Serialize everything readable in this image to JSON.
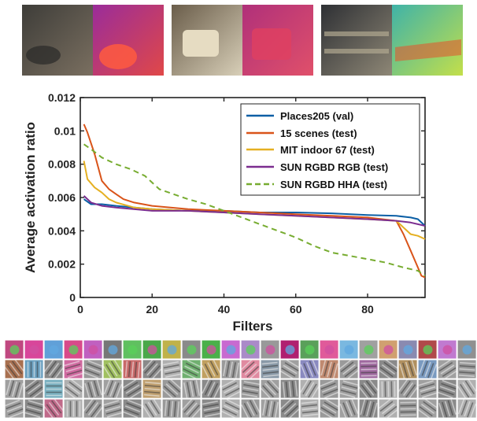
{
  "chart_data": {
    "type": "line",
    "xlabel": "Filters",
    "ylabel": "Average activation ratio",
    "xlim": [
      0,
      96
    ],
    "ylim": [
      0,
      0.012
    ],
    "xticks": [
      0,
      20,
      40,
      60,
      80
    ],
    "xtick_labels": [
      "0",
      "20",
      "40",
      "60",
      "80"
    ],
    "yticks": [
      0,
      0.002,
      0.004,
      0.006,
      0.008,
      0.01,
      0.012
    ],
    "ytick_labels": [
      "0",
      "0.002",
      "0.004",
      "0.006",
      "0.008",
      "0.01",
      "0.012"
    ],
    "grid": false,
    "legend_position": "top-right",
    "series": [
      {
        "name": "Places205 (val)",
        "color": "#0b5fa5",
        "dash": "solid",
        "x": [
          1,
          3,
          6,
          10,
          20,
          30,
          40,
          50,
          60,
          70,
          80,
          88,
          92,
          94,
          96
        ],
        "y": [
          0.0059,
          0.0056,
          0.0056,
          0.0055,
          0.0053,
          0.0052,
          0.0052,
          0.0051,
          0.0051,
          0.00505,
          0.00495,
          0.0049,
          0.0048,
          0.0047,
          0.0043
        ]
      },
      {
        "name": "15 scenes (test)",
        "color": "#d9541a",
        "dash": "solid",
        "x": [
          1,
          2,
          4,
          6,
          8,
          10,
          12,
          15,
          20,
          30,
          40,
          50,
          60,
          70,
          80,
          88,
          90,
          92,
          94,
          95,
          96
        ],
        "y": [
          0.0104,
          0.0099,
          0.0086,
          0.007,
          0.0065,
          0.0062,
          0.0059,
          0.0057,
          0.0055,
          0.0053,
          0.0052,
          0.0051,
          0.005,
          0.0049,
          0.0048,
          0.0046,
          0.0038,
          0.0028,
          0.0018,
          0.0013,
          0.0012
        ]
      },
      {
        "name": "MIT indoor 67 (test)",
        "color": "#e5b022",
        "dash": "solid",
        "x": [
          1,
          2,
          4,
          6,
          8,
          10,
          15,
          20,
          30,
          40,
          50,
          60,
          70,
          80,
          88,
          90,
          92,
          94,
          96
        ],
        "y": [
          0.0082,
          0.0071,
          0.0066,
          0.0063,
          0.0059,
          0.0057,
          0.0054,
          0.0053,
          0.0052,
          0.0051,
          0.005,
          0.0049,
          0.0048,
          0.0047,
          0.0046,
          0.0042,
          0.0038,
          0.0037,
          0.0035
        ]
      },
      {
        "name": "SUN RGBD RGB (test)",
        "color": "#7b2d8f",
        "dash": "solid",
        "x": [
          1,
          3,
          6,
          10,
          20,
          30,
          40,
          50,
          60,
          70,
          80,
          88,
          92,
          96
        ],
        "y": [
          0.0061,
          0.0057,
          0.0055,
          0.0054,
          0.0052,
          0.0052,
          0.0051,
          0.005,
          0.0049,
          0.0048,
          0.0047,
          0.0046,
          0.0045,
          0.0043
        ]
      },
      {
        "name": "SUN RGBD HHA (test)",
        "color": "#77ac30",
        "dash": "dashed",
        "x": [
          1,
          3,
          6,
          10,
          14,
          18,
          22,
          26,
          30,
          35,
          40,
          45,
          50,
          55,
          60,
          65,
          70,
          75,
          80,
          85,
          90,
          94,
          96
        ],
        "y": [
          0.0092,
          0.0089,
          0.0084,
          0.008,
          0.0077,
          0.0073,
          0.0065,
          0.0062,
          0.0059,
          0.0056,
          0.0052,
          0.0048,
          0.0044,
          0.004,
          0.0036,
          0.0031,
          0.0027,
          0.0025,
          0.0023,
          0.0021,
          0.0018,
          0.0016,
          0.0013
        ]
      }
    ]
  },
  "palette": {
    "axis": "#222222",
    "photo_pairs": [
      [
        "#3e3d39",
        "#7a6f60",
        "#9a2c9a",
        "#e04848"
      ],
      [
        "#6a5d4a",
        "#d8cfb8",
        "#b0307a",
        "#e0506a"
      ],
      [
        "#2e3034",
        "#8e8776",
        "#3fb3a8",
        "#c3df4a"
      ]
    ],
    "filter_colors": [
      "#c04880",
      "#d8469a",
      "#60a0d8",
      "#d84a8a",
      "#c060c0",
      "#777777",
      "#60c060",
      "#4aa84a",
      "#c0b24a",
      "#8a8a8a",
      "#4ab04a",
      "#c86ad0",
      "#aa8ac8",
      "#999999",
      "#b02070",
      "#5aa05a",
      "#e05a9a",
      "#7ab8e0",
      "#a0a0a0",
      "#d0a070",
      "#8a8ab0",
      "#b04a4a",
      "#c07ad0",
      "#909090",
      "#a87050",
      "#6aa0c0",
      "#8a8a8a",
      "#d06aa0",
      "#9a9a9a",
      "#a0c060",
      "#c86a6a",
      "#8a8a8a",
      "#b0b0b0",
      "#70b070",
      "#c0a060",
      "#9a9a9a",
      "#e08aa0",
      "#8a9aa8",
      "#a0a0a0",
      "#8a8ac0",
      "#c08a70",
      "#9a9a9a",
      "#a06aa0",
      "#8a8a8a",
      "#b09060",
      "#7a9ac0",
      "#a0a0a0",
      "#9a9a9a",
      "#a0a0a0",
      "#8a8a8a",
      "#7ab0c0",
      "#b0b0b0",
      "#9a9a9a",
      "#a0a0a0",
      "#8a8a8a",
      "#c0a070",
      "#9a9a9a",
      "#a0a0a0",
      "#8a8a8a",
      "#b0b0b0",
      "#9a9a9a",
      "#a0a0a0",
      "#8a8a8a",
      "#b0b0b0",
      "#9a9a9a",
      "#a0a0a0",
      "#8a8a8a",
      "#b0b0b0",
      "#9a9a9a",
      "#a0a0a0",
      "#8a8a8a",
      "#b0b0b0",
      "#a0a0a0",
      "#8a8a8a",
      "#c06a8a",
      "#b0b0b0",
      "#9a9a9a",
      "#a0a0a0",
      "#8a8a8a",
      "#b0b0b0",
      "#9a9a9a",
      "#a0a0a0",
      "#8a8a8a",
      "#b0b0b0",
      "#9a9a9a",
      "#a0a0a0",
      "#8a8a8a",
      "#b0b0b0",
      "#9a9a9a",
      "#a0a0a0",
      "#8a8a8a",
      "#b0b0b0",
      "#9a9a9a",
      "#a0a0a0",
      "#8a8a8a",
      "#b0b0b0"
    ]
  }
}
